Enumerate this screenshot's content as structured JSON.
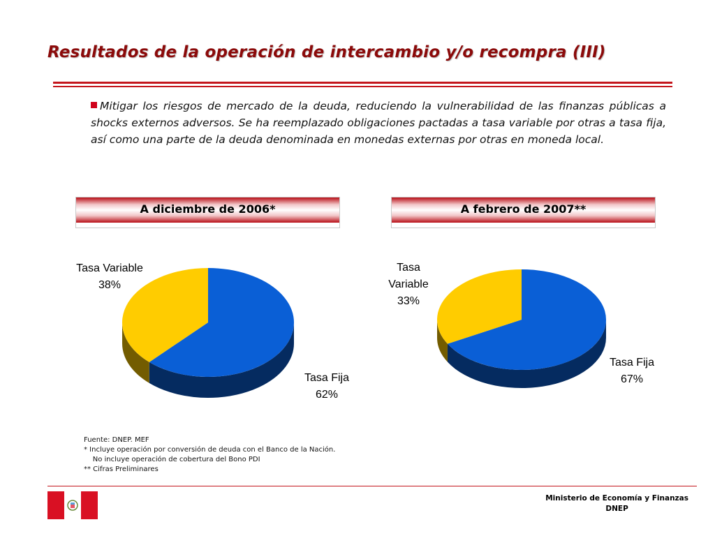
{
  "page": {
    "title": "Resultados de la operación de intercambio y/o recompra (III)",
    "bullet_text": "Mitigar los riesgos de mercado de la deuda, reduciendo la vulnerabilidad de las finanzas públicas a shocks externos adversos. Se ha reemplazado  obligaciones pactadas a tasa variable por otras a tasa fija, así como una parte de la deuda denominada en monedas externas por otras en moneda local."
  },
  "chart_data": [
    {
      "type": "pie",
      "title": "A diciembre de 2006*",
      "slices": [
        {
          "label": "Tasa Fija",
          "value": 62,
          "value_label": "62%",
          "color": "#0a5fd6"
        },
        {
          "label": "Tasa Variable",
          "value": 38,
          "value_label": "38%",
          "color": "#ffcc00"
        }
      ]
    },
    {
      "type": "pie",
      "title": "A febrero de 2007**",
      "slices": [
        {
          "label": "Tasa Fija",
          "value": 67,
          "value_label": "67%",
          "color": "#0a5fd6"
        },
        {
          "label": "Tasa Variable",
          "value": 33,
          "value_label": "33%",
          "color": "#ffcc00"
        }
      ]
    }
  ],
  "notes": {
    "source": "Fuente: DNEP. MEF",
    "note1": "*   Incluye operación por conversión de deuda con el Banco de la Nación.",
    "note2": "    No incluye operación de cobertura del Bono PDI",
    "note3": "** Cifras Preliminares"
  },
  "footer": {
    "ministry": "Ministerio de Economía y Finanzas",
    "unit": "DNEP"
  },
  "colors": {
    "title": "#8B0A0A",
    "accent_red": "#c4161c",
    "fija": "#0a5fd6",
    "variable": "#ffcc00"
  }
}
